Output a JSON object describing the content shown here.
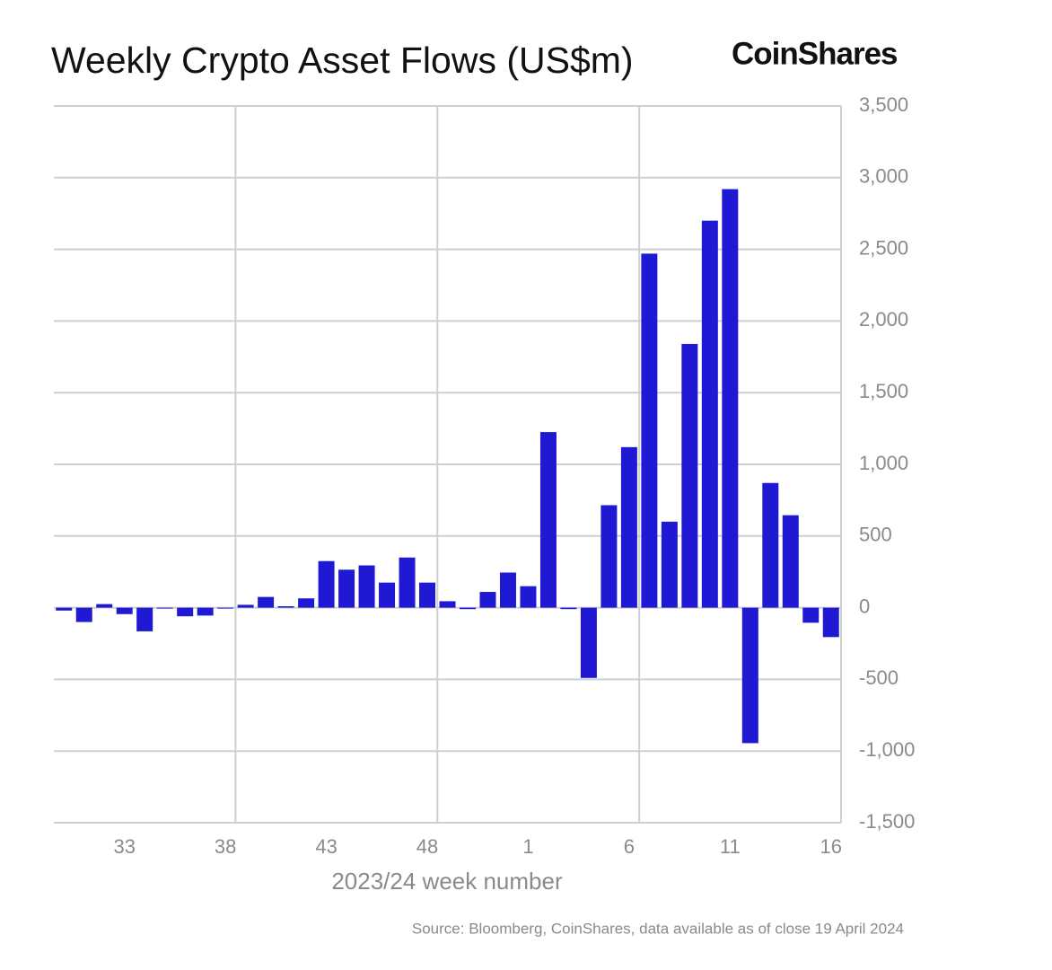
{
  "chart_data": {
    "type": "bar",
    "title": "Weekly Crypto Asset Flows (US$m)",
    "logo": "CoinShares",
    "x_label": "2023/24 week number",
    "source": "Source: Bloomberg, CoinShares, data available as of close 19 April 2024",
    "color": "#1f19d3",
    "categories": [
      null,
      null,
      null,
      "33",
      null,
      null,
      null,
      null,
      "38",
      null,
      null,
      null,
      null,
      "43",
      null,
      null,
      null,
      null,
      "48",
      null,
      null,
      null,
      null,
      "1",
      null,
      null,
      null,
      null,
      "6",
      null,
      null,
      null,
      null,
      "11",
      null,
      null,
      null,
      null,
      "16"
    ],
    "values": [
      -20,
      -100,
      25,
      -45,
      -165,
      0,
      -60,
      -55,
      -5,
      20,
      75,
      10,
      65,
      325,
      265,
      295,
      175,
      350,
      175,
      45,
      -10,
      110,
      245,
      150,
      1225,
      -10,
      -490,
      715,
      1120,
      2470,
      600,
      1840,
      2700,
      2920,
      -945,
      870,
      645,
      -105,
      -205
    ],
    "ylim": [
      -1500,
      3500
    ],
    "yticks": [
      {
        "value": -1500,
        "label": "-1,500"
      },
      {
        "value": -1000,
        "label": "-1,000"
      },
      -500,
      0,
      500,
      {
        "value": 1000,
        "label": "1,000"
      },
      {
        "value": 1500,
        "label": "1,500"
      },
      {
        "value": 2000,
        "label": "2,000"
      },
      {
        "value": 2500,
        "label": "2,500"
      },
      {
        "value": 3000,
        "label": "3,000"
      },
      {
        "value": 3500,
        "label": "3,500"
      }
    ],
    "grid": true
  }
}
